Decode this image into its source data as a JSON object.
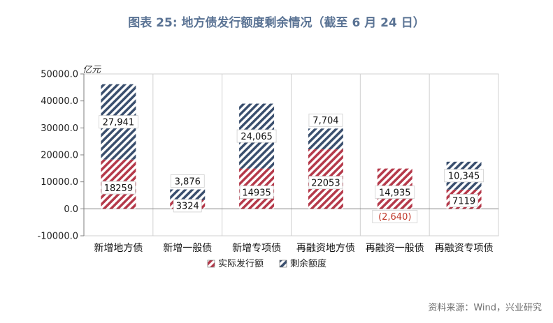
{
  "title": "图表 25: 地方债发行额度剩余情况（截至 6 月 24 日）",
  "source": "资料来源：Wind，兴业研究",
  "colors": {
    "actual": "#b5394a",
    "remaining": "#3a4f6e",
    "negative_label": "#c0392b",
    "grid": "#d0d0d0",
    "axis": "#7f7f7f"
  },
  "chart_data": {
    "type": "bar",
    "stacked": true,
    "unit_label": "亿元",
    "ylim": [
      -10000,
      50000
    ],
    "yticks": [
      "50000.0",
      "40000.0",
      "30000.0",
      "20000.0",
      "10000.0",
      "0.0",
      "-10000.0"
    ],
    "ytick_values": [
      50000,
      40000,
      30000,
      20000,
      10000,
      0,
      -10000
    ],
    "grid": true,
    "legend_position": "bottom",
    "categories": [
      "新增地方债",
      "新增一般债",
      "新增专项债",
      "再融资地方债",
      "再融资一般债",
      "再融资专项债"
    ],
    "series": [
      {
        "name": "实际发行额",
        "values": [
          18259,
          3324,
          14935,
          22053,
          14935,
          7119
        ],
        "labels": [
          "18259",
          "3324",
          "14935",
          "22053",
          "14,935",
          "7119"
        ]
      },
      {
        "name": "剩余额度",
        "values": [
          27941,
          3876,
          24065,
          7704,
          -2640,
          10345
        ],
        "labels": [
          "27,941",
          "3,876",
          "24,065",
          "7,704",
          "(2,640)",
          "10,345"
        ]
      }
    ]
  }
}
